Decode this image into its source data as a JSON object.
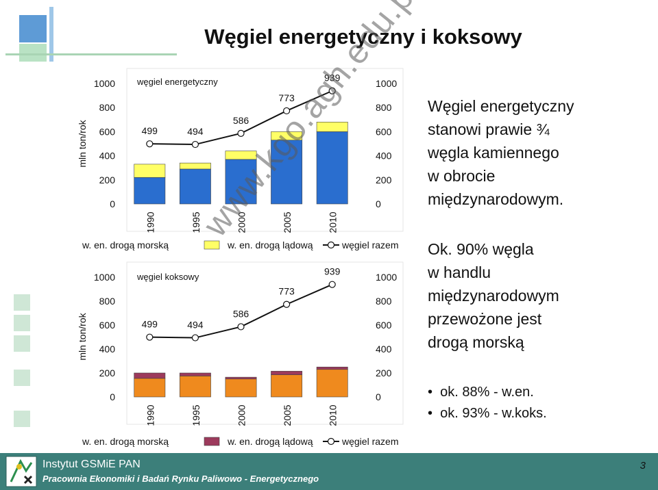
{
  "slide": {
    "title": "Węgiel energetyczny i koksowy",
    "page_number": "3"
  },
  "right_text": {
    "para1_lines": [
      "Węgiel energetyczny",
      "stanowi prawie ¾",
      "węgla kamiennego",
      "w obrocie",
      "międzynarodowym."
    ],
    "para2_lines": [
      "Ok. 90% węgla",
      "w handlu",
      "międzynarodowym",
      "przewożone jest",
      "drogą morską"
    ],
    "bullets": [
      "ok. 88% - w.en.",
      "ok. 93% - w.koks."
    ]
  },
  "footer": {
    "institute": "Instytut GSMiE PAN",
    "department": "Pracownia Ekonomiki i Badań Rynku Paliwowo - Energetycznego"
  },
  "watermark": "www.kgo.agh.edu.pl",
  "colors": {
    "sea_energy": "#2a6ecf",
    "land_energy": "#ffff66",
    "sea_coking": "#ef8a1e",
    "land_coking": "#9c3a5c",
    "footer_bg": "#3c7f7a",
    "deco_green": "#8ec8a2",
    "deco_blue": "#4a8ed0"
  },
  "chart_data": [
    {
      "type": "bar",
      "title": "węgiel energetyczny",
      "categories": [
        "1990",
        "1995",
        "2000",
        "2005",
        "2010"
      ],
      "ylabel": "mln ton/rok",
      "ylim": [
        0,
        1000
      ],
      "yticks": [
        0,
        200,
        400,
        600,
        800,
        1000
      ],
      "y2ticks": [
        0,
        200,
        400,
        600,
        800,
        1000
      ],
      "stacked": true,
      "series": [
        {
          "name": "w. en. drogą morską",
          "values": [
            220,
            290,
            370,
            530,
            600
          ]
        },
        {
          "name": "w. en. drogą lądową",
          "values": [
            110,
            50,
            70,
            70,
            80
          ]
        }
      ],
      "line": {
        "name": "węgiel razem",
        "values": [
          499,
          494,
          586,
          773,
          939
        ],
        "labels": [
          "499",
          "494",
          "586",
          "773",
          "939"
        ]
      },
      "legend": "bottom"
    },
    {
      "type": "bar",
      "title": "węgiel koksowy",
      "categories": [
        "1990",
        "1995",
        "2000",
        "2005",
        "2010"
      ],
      "ylabel": "mln ton/rok",
      "ylim": [
        0,
        1000
      ],
      "yticks": [
        0,
        200,
        400,
        600,
        800,
        1000
      ],
      "y2ticks": [
        0,
        200,
        400,
        600,
        800,
        1000
      ],
      "stacked": true,
      "series": [
        {
          "name": "w. en. drogą morską",
          "values": [
            155,
            175,
            150,
            185,
            230
          ]
        },
        {
          "name": "w. en. drogą lądową",
          "values": [
            45,
            25,
            15,
            30,
            20
          ]
        }
      ],
      "line": {
        "name": "węgiel razem",
        "values": [
          499,
          494,
          586,
          773,
          939
        ],
        "labels": [
          "499",
          "494",
          "586",
          "773",
          "939"
        ]
      },
      "legend": "bottom"
    }
  ]
}
